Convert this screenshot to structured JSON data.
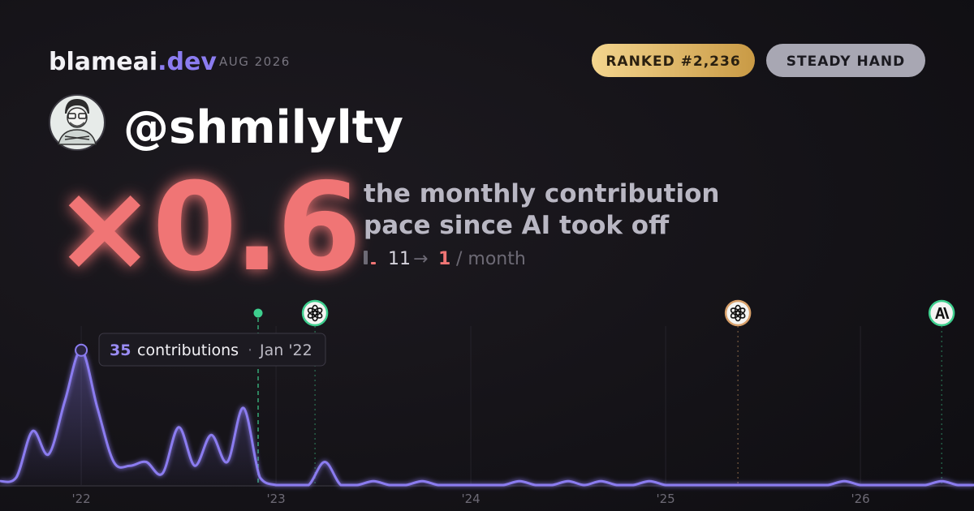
{
  "brand": {
    "name": "blameai",
    "tld": ".dev"
  },
  "date": "AUG 2026",
  "badges": [
    "RANKED #2,236",
    "STEADY HAND"
  ],
  "username": "@shmilylty",
  "multiplier": "×0.6",
  "description": [
    "the monthly contribution",
    "pace since AI took off"
  ],
  "pace": {
    "before": 11,
    "arrow": "→",
    "after": 1,
    "unit": "/ month"
  },
  "tooltip": {
    "value": 35,
    "label": "contributions",
    "separator": "·",
    "date": "Jan '22"
  },
  "chart_data": {
    "type": "line",
    "color": "#8b7cf0",
    "x": [
      2021.583,
      2021.667,
      2021.75,
      2021.833,
      2021.917,
      2022.0,
      2022.083,
      2022.167,
      2022.25,
      2022.333,
      2022.417,
      2022.5,
      2022.583,
      2022.667,
      2022.75,
      2022.833,
      2022.917,
      2023.0,
      2023.083,
      2023.167,
      2023.25,
      2023.333,
      2023.417,
      2023.5,
      2023.583,
      2023.667,
      2023.75,
      2023.833,
      2023.917,
      2024.0,
      2024.083,
      2024.167,
      2024.25,
      2024.333,
      2024.417,
      2024.5,
      2024.583,
      2024.667,
      2024.75,
      2024.833,
      2024.917,
      2025.0,
      2025.083,
      2025.167,
      2025.25,
      2025.333,
      2025.417,
      2025.5,
      2025.583,
      2025.667,
      2025.75,
      2025.833,
      2025.917,
      2026.0,
      2026.083,
      2026.167,
      2026.25,
      2026.333,
      2026.417,
      2026.5,
      2026.583
    ],
    "values": [
      1,
      2,
      14,
      8,
      22,
      35,
      20,
      6,
      5,
      6,
      3,
      15,
      5,
      13,
      6,
      20,
      2,
      0,
      0,
      0,
      6,
      0,
      0,
      1,
      0,
      0,
      1,
      0,
      0,
      0,
      0,
      0,
      1,
      0,
      0,
      1,
      0,
      1,
      0,
      0,
      1,
      0,
      0,
      0,
      0,
      0,
      0,
      0,
      0,
      0,
      0,
      0,
      1,
      0,
      0,
      0,
      0,
      0,
      1,
      0,
      0
    ],
    "xlim": [
      2021.583,
      2026.583
    ],
    "ylim": [
      0,
      40
    ],
    "xticks": [
      {
        "value": 2022,
        "label": "'22"
      },
      {
        "value": 2023,
        "label": "'23"
      },
      {
        "value": 2024,
        "label": "'24"
      },
      {
        "value": 2025,
        "label": "'25"
      },
      {
        "value": 2026,
        "label": "'26"
      }
    ],
    "grid": true,
    "events": [
      {
        "x": 2022.908,
        "icon": "dot",
        "color": "#3ecf8e"
      },
      {
        "x": 2023.2,
        "icon": "openai",
        "color": "#3ecf8e"
      },
      {
        "x": 2025.371,
        "icon": "openai",
        "color": "#d8a06a"
      },
      {
        "x": 2026.417,
        "icon": "anthropic",
        "color": "#3ecf8e"
      }
    ]
  }
}
